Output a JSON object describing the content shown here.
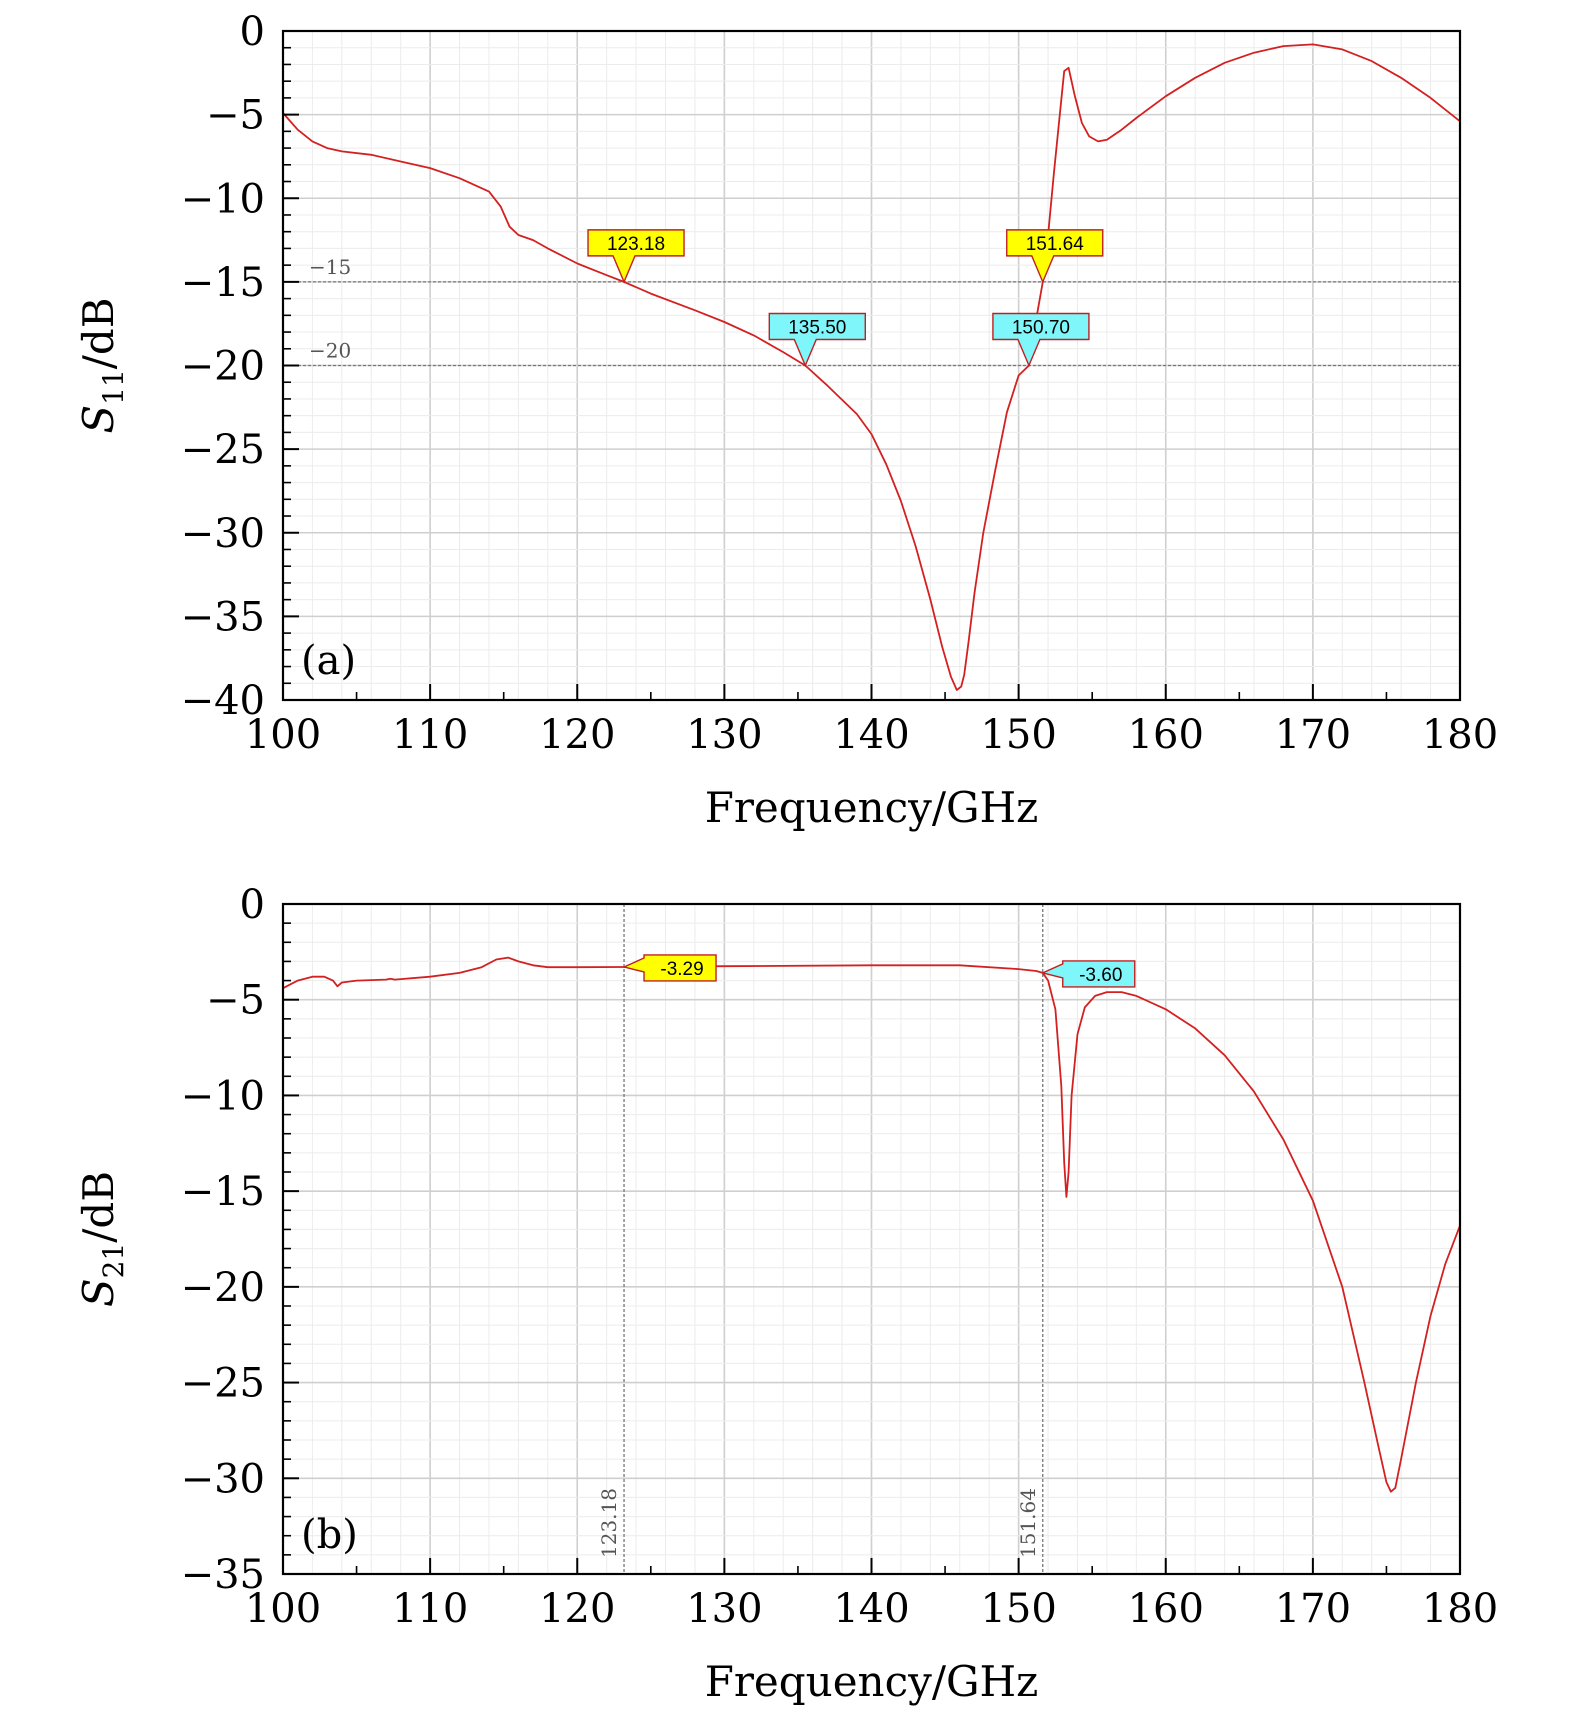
{
  "chart_data": [
    {
      "type": "line",
      "panel_label": "(a)",
      "xlabel": "Frequency/GHz",
      "ylabel": "S11/dB",
      "ylabel_main": "S",
      "ylabel_sub": "11",
      "ylabel_unit": "/dB",
      "xlim": [
        100,
        180
      ],
      "ylim": [
        -40,
        0
      ],
      "grid": true,
      "x_ticks": [
        100,
        110,
        120,
        130,
        140,
        150,
        160,
        170,
        180
      ],
      "y_ticks": [
        0,
        -5,
        -10,
        -15,
        -20,
        -25,
        -30,
        -35,
        -40
      ],
      "x_tick_labels": [
        "100",
        "110",
        "120",
        "130",
        "140",
        "150",
        "160",
        "170",
        "180"
      ],
      "y_tick_labels": [
        "0",
        "−5",
        "−10",
        "−15",
        "−20",
        "−25",
        "−30",
        "−35",
        "−40"
      ],
      "ref_lines": [
        {
          "axis": "y",
          "value": -15,
          "label": "−15"
        },
        {
          "axis": "y",
          "value": -20,
          "label": "−20"
        }
      ],
      "markers": [
        {
          "x": 123.18,
          "y": -15,
          "label": "123.18",
          "color": "#ffff00",
          "style": "callout-down"
        },
        {
          "x": 135.5,
          "y": -20,
          "label": "135.50",
          "color": "#7ff6fa",
          "style": "callout-down"
        },
        {
          "x": 151.64,
          "y": -15,
          "label": "151.64",
          "color": "#ffff00",
          "style": "callout-down"
        },
        {
          "x": 150.7,
          "y": -20,
          "label": "150.70",
          "color": "#7ff6fa",
          "style": "callout-down"
        }
      ],
      "series": [
        {
          "color": "#d42020",
          "x": [
            100,
            101,
            102,
            103,
            104,
            106,
            108,
            110,
            112,
            114,
            114.8,
            115.4,
            116,
            117,
            118,
            120,
            122,
            123.18,
            125,
            128,
            130,
            132,
            134,
            135.5,
            137,
            139,
            140,
            141,
            142,
            143,
            144,
            144.8,
            145.4,
            145.8,
            146.1,
            146.3,
            146.6,
            147,
            147.6,
            148.4,
            149.2,
            150,
            150.7,
            151.2,
            151.64,
            152,
            152.4,
            152.8,
            153.1,
            153.4,
            153.8,
            154.3,
            154.8,
            155.4,
            156,
            157,
            158,
            160,
            162,
            164,
            166,
            168,
            170,
            172,
            174,
            176,
            178,
            180
          ],
          "y": [
            -4.9,
            -5.9,
            -6.6,
            -7.0,
            -7.2,
            -7.4,
            -7.8,
            -8.2,
            -8.8,
            -9.6,
            -10.5,
            -11.7,
            -12.2,
            -12.5,
            -13.0,
            -13.9,
            -14.6,
            -15.0,
            -15.7,
            -16.7,
            -17.4,
            -18.2,
            -19.2,
            -20.0,
            -21.2,
            -22.9,
            -24.1,
            -25.9,
            -28.1,
            -30.8,
            -34.0,
            -36.8,
            -38.6,
            -39.4,
            -39.2,
            -38.5,
            -36.5,
            -33.6,
            -30.0,
            -26.3,
            -22.8,
            -20.6,
            -20.0,
            -17.2,
            -15.0,
            -12.2,
            -8.5,
            -5.0,
            -2.4,
            -2.2,
            -3.8,
            -5.5,
            -6.3,
            -6.6,
            -6.5,
            -5.9,
            -5.2,
            -3.9,
            -2.8,
            -1.9,
            -1.3,
            -0.9,
            -0.8,
            -1.1,
            -1.8,
            -2.8,
            -4.0,
            -5.4
          ]
        }
      ]
    },
    {
      "type": "line",
      "panel_label": "(b)",
      "xlabel": "Frequency/GHz",
      "ylabel": "S21/dB",
      "ylabel_main": "S",
      "ylabel_sub": "21",
      "ylabel_unit": "/dB",
      "xlim": [
        100,
        180
      ],
      "ylim": [
        -35,
        0
      ],
      "grid": true,
      "x_ticks": [
        100,
        110,
        120,
        130,
        140,
        150,
        160,
        170,
        180
      ],
      "y_ticks": [
        0,
        -5,
        -10,
        -15,
        -20,
        -25,
        -30,
        -35
      ],
      "x_tick_labels": [
        "100",
        "110",
        "120",
        "130",
        "140",
        "150",
        "160",
        "170",
        "180"
      ],
      "y_tick_labels": [
        "0",
        "−5",
        "−10",
        "−15",
        "−20",
        "−25",
        "−30",
        "−35"
      ],
      "ref_lines": [
        {
          "axis": "x",
          "value": 123.18,
          "label": "123.18"
        },
        {
          "axis": "x",
          "value": 151.64,
          "label": "151.64"
        }
      ],
      "markers": [
        {
          "x": 123.18,
          "y": -3.29,
          "label": "-3.29",
          "color": "#ffff00",
          "style": "callout-left"
        },
        {
          "x": 151.64,
          "y": -3.6,
          "label": "-3.60",
          "color": "#7ff6fa",
          "style": "callout-left"
        }
      ],
      "series": [
        {
          "color": "#d42020",
          "x": [
            100,
            101,
            102,
            102.8,
            103.4,
            103.7,
            104,
            105,
            107,
            107.3,
            107.6,
            110,
            112,
            113.5,
            114.5,
            115.3,
            116,
            117,
            118,
            120,
            123.18,
            130,
            140,
            146,
            150,
            151.2,
            151.64,
            152,
            152.5,
            152.9,
            153.1,
            153.25,
            153.4,
            153.6,
            154,
            154.5,
            155.2,
            156,
            157,
            158,
            160,
            162,
            164,
            166,
            168,
            170,
            172,
            173.5,
            174.5,
            175,
            175.3,
            175.6,
            176,
            177,
            178,
            179,
            180
          ],
          "y": [
            -4.4,
            -4.0,
            -3.8,
            -3.8,
            -4.0,
            -4.3,
            -4.1,
            -4.0,
            -3.95,
            -3.9,
            -3.95,
            -3.8,
            -3.6,
            -3.3,
            -2.9,
            -2.8,
            -3.0,
            -3.2,
            -3.3,
            -3.3,
            -3.29,
            -3.25,
            -3.2,
            -3.2,
            -3.4,
            -3.5,
            -3.6,
            -4.0,
            -5.5,
            -9.5,
            -13.5,
            -15.3,
            -14.0,
            -10.0,
            -6.8,
            -5.4,
            -4.8,
            -4.6,
            -4.6,
            -4.8,
            -5.5,
            -6.5,
            -7.9,
            -9.8,
            -12.3,
            -15.5,
            -20.0,
            -25.0,
            -28.5,
            -30.2,
            -30.7,
            -30.5,
            -29.0,
            -25.0,
            -21.5,
            -18.8,
            -16.8
          ]
        }
      ]
    }
  ]
}
